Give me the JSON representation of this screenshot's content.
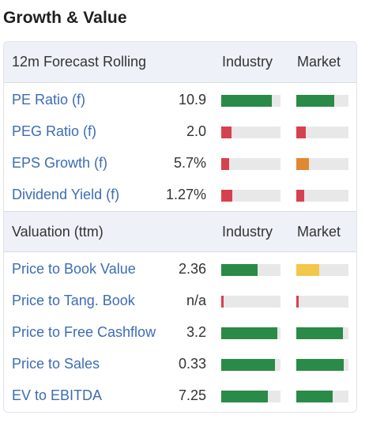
{
  "title": "Growth & Value",
  "colors": {
    "green": "#2a8a47",
    "red": "#d6414f",
    "orange": "#e08832",
    "yellow": "#f2c84a",
    "link": "#3b6db3"
  },
  "sections": [
    {
      "header": {
        "label": "12m Forecast Rolling",
        "industry": "Industry",
        "market": "Market"
      },
      "rows": [
        {
          "label": "PE Ratio (f)",
          "value": "10.9",
          "industry_level": 0.85,
          "industry_color": "green",
          "market_level": 0.72,
          "market_color": "green"
        },
        {
          "label": "PEG Ratio (f)",
          "value": "2.0",
          "industry_level": 0.17,
          "industry_color": "red",
          "market_level": 0.18,
          "market_color": "red"
        },
        {
          "label": "EPS Growth (f)",
          "value": "5.7%",
          "industry_level": 0.13,
          "industry_color": "red",
          "market_level": 0.24,
          "market_color": "orange"
        },
        {
          "label": "Dividend Yield (f)",
          "value": "1.27%",
          "industry_level": 0.18,
          "industry_color": "red",
          "market_level": 0.15,
          "market_color": "red"
        }
      ]
    },
    {
      "header": {
        "label": "Valuation (ttm)",
        "industry": "Industry",
        "market": "Market"
      },
      "rows": [
        {
          "label": "Price to Book Value",
          "value": "2.36",
          "industry_level": 0.61,
          "industry_color": "green",
          "market_level": 0.44,
          "market_color": "yellow"
        },
        {
          "label": "Price to Tang. Book",
          "value": "n/a",
          "industry_level": 0.04,
          "industry_color": "red",
          "market_level": 0.04,
          "market_color": "red"
        },
        {
          "label": "Price to Free Cashflow",
          "value": "3.2",
          "industry_level": 0.95,
          "industry_color": "green",
          "market_level": 0.9,
          "market_color": "green"
        },
        {
          "label": "Price to Sales",
          "value": "0.33",
          "industry_level": 0.9,
          "industry_color": "green",
          "market_level": 0.91,
          "market_color": "green"
        },
        {
          "label": "EV to EBITDA",
          "value": "7.25",
          "industry_level": 0.78,
          "industry_color": "green",
          "market_level": 0.7,
          "market_color": "green"
        }
      ]
    }
  ]
}
